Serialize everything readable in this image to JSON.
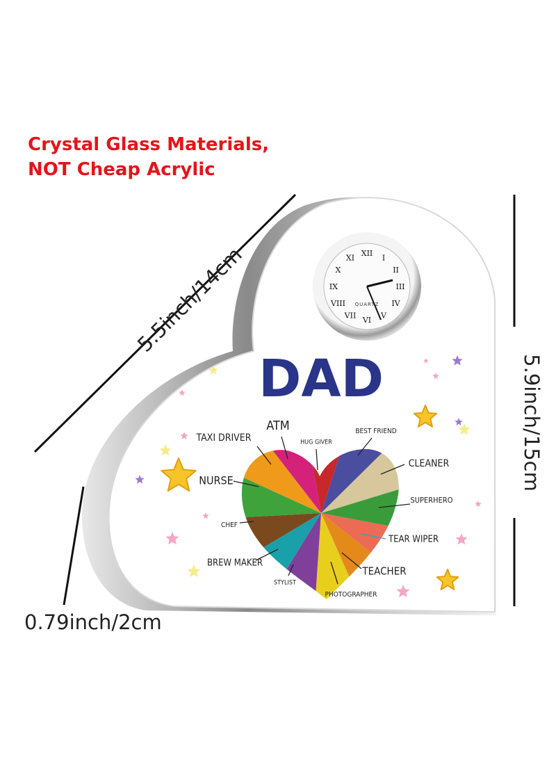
{
  "headline": [
    "Crystal Glass Materials,",
    "NOT Cheap Acrylic"
  ],
  "dimensions": {
    "width": "5.5inch/14cm",
    "height": "5.9inch/15cm",
    "thickness": "0.79inch/2cm"
  },
  "plaque": {
    "title": "DAD",
    "clock": {
      "brand": "QUARTZ",
      "numerals": [
        "XII",
        "I",
        "II",
        "III",
        "IV",
        "V",
        "VI",
        "VII",
        "VIII",
        "IX",
        "X",
        "XI"
      ]
    },
    "roles": [
      "TAXI DRIVER",
      "ATM",
      "HUG GIVER",
      "BEST FRIEND",
      "CLEANER",
      "NURSE",
      "SUPERHERO",
      "CHEF",
      "TEAR WIPER",
      "BREW MAKER",
      "TEACHER",
      "STYLIST",
      "PHOTOGRAPHER"
    ]
  }
}
